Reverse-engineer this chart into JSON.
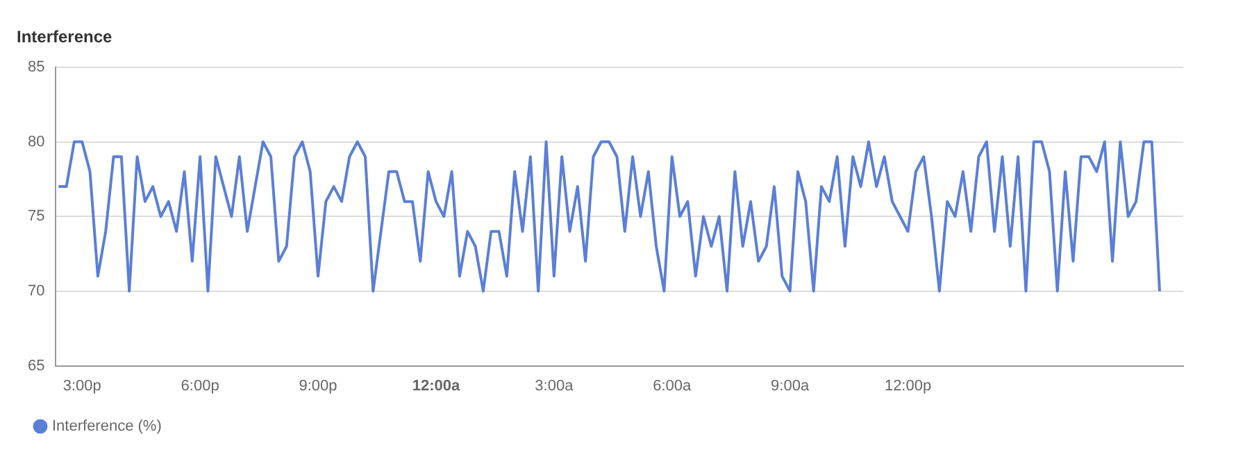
{
  "chart_data": {
    "type": "line",
    "title": "Interference",
    "x": [
      "--01-01T14:24",
      "--01-01T14:36",
      "--01-01T14:48",
      "--01-01T15:00",
      "--01-01T15:12",
      "--01-01T15:24",
      "--01-01T15:36",
      "--01-01T15:48",
      "--01-01T16:00",
      "--01-01T16:12",
      "--01-01T16:24",
      "--01-01T16:36",
      "--01-01T16:48",
      "--01-01T17:00",
      "--01-01T17:12",
      "--01-01T17:24",
      "--01-01T17:36",
      "--01-01T17:48",
      "--01-01T18:00",
      "--01-01T18:12",
      "--01-01T18:24",
      "--01-01T18:36",
      "--01-01T18:48",
      "--01-01T19:00",
      "--01-01T19:12",
      "--01-01T19:24",
      "--01-01T19:36",
      "--01-01T19:48",
      "--01-01T20:00",
      "--01-01T20:12",
      "--01-01T20:24",
      "--01-01T20:36",
      "--01-01T20:48",
      "--01-01T21:00",
      "--01-01T21:12",
      "--01-01T21:24",
      "--01-01T21:36",
      "--01-01T21:48",
      "--01-01T22:00",
      "--01-01T22:12",
      "--01-01T22:24",
      "--01-01T22:36",
      "--01-01T22:48",
      "--01-01T23:00",
      "--01-01T23:12",
      "--01-01T23:24",
      "--01-01T23:36",
      "--01-01T23:48",
      "--01-02T00:00",
      "--01-02T00:12",
      "--01-02T00:24",
      "--01-02T00:36",
      "--01-02T00:48",
      "--01-02T01:00",
      "--01-02T01:12",
      "--01-02T01:24",
      "--01-02T01:36",
      "--01-02T01:48",
      "--01-02T02:00",
      "--01-02T02:12",
      "--01-02T02:24",
      "--01-02T02:36",
      "--01-02T02:48",
      "--01-02T03:00",
      "--01-02T03:12",
      "--01-02T03:24",
      "--01-02T03:36",
      "--01-02T03:48",
      "--01-02T04:00",
      "--01-02T04:12",
      "--01-02T04:24",
      "--01-02T04:36",
      "--01-02T04:48",
      "--01-02T05:00",
      "--01-02T05:12",
      "--01-02T05:24",
      "--01-02T05:36",
      "--01-02T05:48",
      "--01-02T06:00",
      "--01-02T06:12",
      "--01-02T06:24",
      "--01-02T06:36",
      "--01-02T06:48",
      "--01-02T07:00",
      "--01-02T07:12",
      "--01-02T07:24",
      "--01-02T07:36",
      "--01-02T07:48",
      "--01-02T08:00",
      "--01-02T08:12",
      "--01-02T08:24",
      "--01-02T08:36",
      "--01-02T08:48",
      "--01-02T09:00",
      "--01-02T09:12",
      "--01-02T09:24",
      "--01-02T09:36",
      "--01-02T09:48",
      "--01-02T10:00",
      "--01-02T10:12",
      "--01-02T10:24",
      "--01-02T10:36",
      "--01-02T10:48",
      "--01-02T11:00",
      "--01-02T11:12",
      "--01-02T11:24",
      "--01-02T11:36",
      "--01-02T11:48",
      "--01-02T12:00",
      "--01-02T12:12",
      "--01-02T12:24",
      "--01-02T12:36",
      "--01-02T12:48",
      "--01-02T13:00",
      "--01-02T13:12",
      "--01-02T13:24",
      "--01-02T13:36",
      "--01-02T13:48",
      "--01-02T14:00",
      "--01-02T14:12",
      "--01-02T14:24",
      "--01-02T14:36",
      "--01-02T14:48",
      "--01-02T15:00",
      "--01-02T15:12",
      "--01-02T15:24",
      "--01-02T15:36",
      "--01-02T15:48",
      "--01-02T16:00",
      "--01-02T16:12",
      "--01-02T16:24",
      "--01-02T16:36",
      "--01-02T16:48",
      "--01-02T17:00",
      "--01-02T17:12",
      "--01-02T17:24",
      "--01-02T17:36",
      "--01-02T17:48",
      "--01-02T18:00",
      "--01-02T18:12",
      "--01-02T18:24"
    ],
    "series": [
      {
        "name": "Interference (%)",
        "color": "#5b7fd6",
        "values": [
          77,
          77,
          80,
          80,
          78,
          71,
          74,
          79,
          79,
          70,
          79,
          76,
          77,
          75,
          76,
          74,
          78,
          72,
          79,
          70,
          79,
          77,
          75,
          79,
          74,
          77,
          80,
          79,
          72,
          73,
          79,
          80,
          78,
          71,
          76,
          77,
          76,
          79,
          80,
          79,
          70,
          74,
          78,
          78,
          76,
          76,
          72,
          78,
          76,
          75,
          78,
          71,
          74,
          73,
          70,
          74,
          74,
          71,
          78,
          74,
          79,
          70,
          80,
          71,
          79,
          74,
          77,
          72,
          79,
          80,
          80,
          79,
          74,
          79,
          75,
          78,
          73,
          70,
          79,
          75,
          76,
          71,
          75,
          73,
          75,
          70,
          78,
          73,
          76,
          72,
          73,
          77,
          71,
          70,
          78,
          76,
          70,
          77,
          76,
          79,
          73,
          79,
          77,
          80,
          77,
          79,
          76,
          75,
          74,
          78,
          79,
          75,
          70,
          76,
          75,
          78,
          74,
          79,
          80,
          74,
          79,
          73,
          79,
          70,
          80,
          80,
          78,
          70,
          78,
          72,
          79,
          79,
          78,
          80,
          72,
          80,
          75,
          76,
          80,
          80,
          70
        ]
      }
    ],
    "xlim": [
      "--01-01T14:20",
      "--01-02T19:00"
    ],
    "xticks": [
      {
        "value": "--01-01T15:00",
        "label": "3:00p"
      },
      {
        "value": "--01-01T18:00",
        "label": "6:00p"
      },
      {
        "value": "--01-01T21:00",
        "label": "9:00p"
      },
      {
        "value": "--01-02T00:00",
        "label": "12:00a"
      },
      {
        "value": "--01-02T03:00",
        "label": "3:00a"
      },
      {
        "value": "--01-02T06:00",
        "label": "6:00a"
      },
      {
        "value": "--01-02T09:00",
        "label": "9:00a"
      },
      {
        "value": "--01-02T12:00",
        "label": "12:00p"
      }
    ],
    "ylim": [
      65,
      85
    ],
    "yticks": [
      65,
      70,
      75,
      80,
      85
    ],
    "grid": "y",
    "legend": "bottom left",
    "marker": "none",
    "line_style": "solid"
  }
}
